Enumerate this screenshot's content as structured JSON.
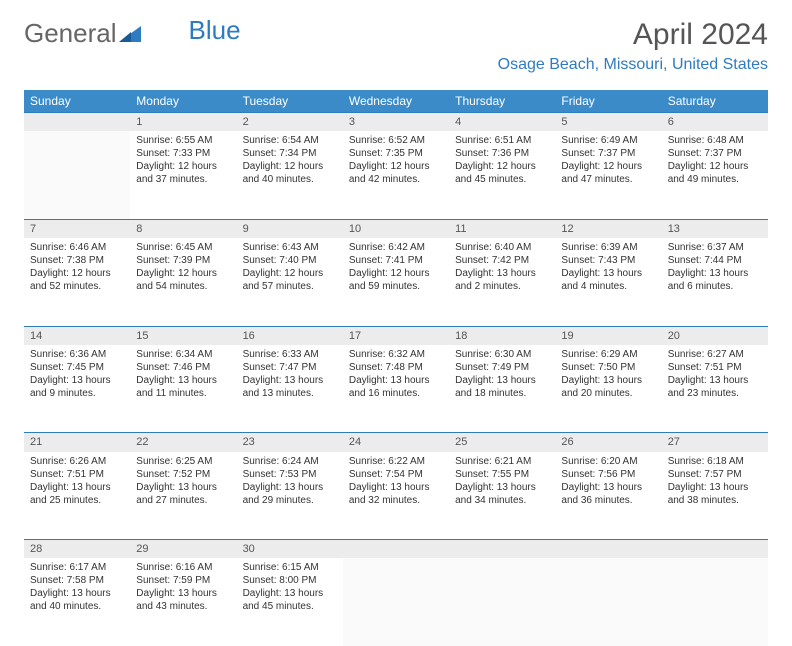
{
  "logo": {
    "general": "General",
    "blue": "Blue"
  },
  "title": "April 2024",
  "location": "Osage Beach, Missouri, United States",
  "colors": {
    "header_bg": "#3b8bc9",
    "accent": "#2f7bbf",
    "daynum_bg": "#ececec",
    "text": "#333333",
    "muted": "#555555"
  },
  "weekdays": [
    "Sunday",
    "Monday",
    "Tuesday",
    "Wednesday",
    "Thursday",
    "Friday",
    "Saturday"
  ],
  "weeks": [
    [
      null,
      {
        "n": "1",
        "sr": "Sunrise: 6:55 AM",
        "ss": "Sunset: 7:33 PM",
        "d1": "Daylight: 12 hours",
        "d2": "and 37 minutes."
      },
      {
        "n": "2",
        "sr": "Sunrise: 6:54 AM",
        "ss": "Sunset: 7:34 PM",
        "d1": "Daylight: 12 hours",
        "d2": "and 40 minutes."
      },
      {
        "n": "3",
        "sr": "Sunrise: 6:52 AM",
        "ss": "Sunset: 7:35 PM",
        "d1": "Daylight: 12 hours",
        "d2": "and 42 minutes."
      },
      {
        "n": "4",
        "sr": "Sunrise: 6:51 AM",
        "ss": "Sunset: 7:36 PM",
        "d1": "Daylight: 12 hours",
        "d2": "and 45 minutes."
      },
      {
        "n": "5",
        "sr": "Sunrise: 6:49 AM",
        "ss": "Sunset: 7:37 PM",
        "d1": "Daylight: 12 hours",
        "d2": "and 47 minutes."
      },
      {
        "n": "6",
        "sr": "Sunrise: 6:48 AM",
        "ss": "Sunset: 7:37 PM",
        "d1": "Daylight: 12 hours",
        "d2": "and 49 minutes."
      }
    ],
    [
      {
        "n": "7",
        "sr": "Sunrise: 6:46 AM",
        "ss": "Sunset: 7:38 PM",
        "d1": "Daylight: 12 hours",
        "d2": "and 52 minutes."
      },
      {
        "n": "8",
        "sr": "Sunrise: 6:45 AM",
        "ss": "Sunset: 7:39 PM",
        "d1": "Daylight: 12 hours",
        "d2": "and 54 minutes."
      },
      {
        "n": "9",
        "sr": "Sunrise: 6:43 AM",
        "ss": "Sunset: 7:40 PM",
        "d1": "Daylight: 12 hours",
        "d2": "and 57 minutes."
      },
      {
        "n": "10",
        "sr": "Sunrise: 6:42 AM",
        "ss": "Sunset: 7:41 PM",
        "d1": "Daylight: 12 hours",
        "d2": "and 59 minutes."
      },
      {
        "n": "11",
        "sr": "Sunrise: 6:40 AM",
        "ss": "Sunset: 7:42 PM",
        "d1": "Daylight: 13 hours",
        "d2": "and 2 minutes."
      },
      {
        "n": "12",
        "sr": "Sunrise: 6:39 AM",
        "ss": "Sunset: 7:43 PM",
        "d1": "Daylight: 13 hours",
        "d2": "and 4 minutes."
      },
      {
        "n": "13",
        "sr": "Sunrise: 6:37 AM",
        "ss": "Sunset: 7:44 PM",
        "d1": "Daylight: 13 hours",
        "d2": "and 6 minutes."
      }
    ],
    [
      {
        "n": "14",
        "sr": "Sunrise: 6:36 AM",
        "ss": "Sunset: 7:45 PM",
        "d1": "Daylight: 13 hours",
        "d2": "and 9 minutes."
      },
      {
        "n": "15",
        "sr": "Sunrise: 6:34 AM",
        "ss": "Sunset: 7:46 PM",
        "d1": "Daylight: 13 hours",
        "d2": "and 11 minutes."
      },
      {
        "n": "16",
        "sr": "Sunrise: 6:33 AM",
        "ss": "Sunset: 7:47 PM",
        "d1": "Daylight: 13 hours",
        "d2": "and 13 minutes."
      },
      {
        "n": "17",
        "sr": "Sunrise: 6:32 AM",
        "ss": "Sunset: 7:48 PM",
        "d1": "Daylight: 13 hours",
        "d2": "and 16 minutes."
      },
      {
        "n": "18",
        "sr": "Sunrise: 6:30 AM",
        "ss": "Sunset: 7:49 PM",
        "d1": "Daylight: 13 hours",
        "d2": "and 18 minutes."
      },
      {
        "n": "19",
        "sr": "Sunrise: 6:29 AM",
        "ss": "Sunset: 7:50 PM",
        "d1": "Daylight: 13 hours",
        "d2": "and 20 minutes."
      },
      {
        "n": "20",
        "sr": "Sunrise: 6:27 AM",
        "ss": "Sunset: 7:51 PM",
        "d1": "Daylight: 13 hours",
        "d2": "and 23 minutes."
      }
    ],
    [
      {
        "n": "21",
        "sr": "Sunrise: 6:26 AM",
        "ss": "Sunset: 7:51 PM",
        "d1": "Daylight: 13 hours",
        "d2": "and 25 minutes."
      },
      {
        "n": "22",
        "sr": "Sunrise: 6:25 AM",
        "ss": "Sunset: 7:52 PM",
        "d1": "Daylight: 13 hours",
        "d2": "and 27 minutes."
      },
      {
        "n": "23",
        "sr": "Sunrise: 6:24 AM",
        "ss": "Sunset: 7:53 PM",
        "d1": "Daylight: 13 hours",
        "d2": "and 29 minutes."
      },
      {
        "n": "24",
        "sr": "Sunrise: 6:22 AM",
        "ss": "Sunset: 7:54 PM",
        "d1": "Daylight: 13 hours",
        "d2": "and 32 minutes."
      },
      {
        "n": "25",
        "sr": "Sunrise: 6:21 AM",
        "ss": "Sunset: 7:55 PM",
        "d1": "Daylight: 13 hours",
        "d2": "and 34 minutes."
      },
      {
        "n": "26",
        "sr": "Sunrise: 6:20 AM",
        "ss": "Sunset: 7:56 PM",
        "d1": "Daylight: 13 hours",
        "d2": "and 36 minutes."
      },
      {
        "n": "27",
        "sr": "Sunrise: 6:18 AM",
        "ss": "Sunset: 7:57 PM",
        "d1": "Daylight: 13 hours",
        "d2": "and 38 minutes."
      }
    ],
    [
      {
        "n": "28",
        "sr": "Sunrise: 6:17 AM",
        "ss": "Sunset: 7:58 PM",
        "d1": "Daylight: 13 hours",
        "d2": "and 40 minutes."
      },
      {
        "n": "29",
        "sr": "Sunrise: 6:16 AM",
        "ss": "Sunset: 7:59 PM",
        "d1": "Daylight: 13 hours",
        "d2": "and 43 minutes."
      },
      {
        "n": "30",
        "sr": "Sunrise: 6:15 AM",
        "ss": "Sunset: 8:00 PM",
        "d1": "Daylight: 13 hours",
        "d2": "and 45 minutes."
      },
      null,
      null,
      null,
      null
    ]
  ]
}
